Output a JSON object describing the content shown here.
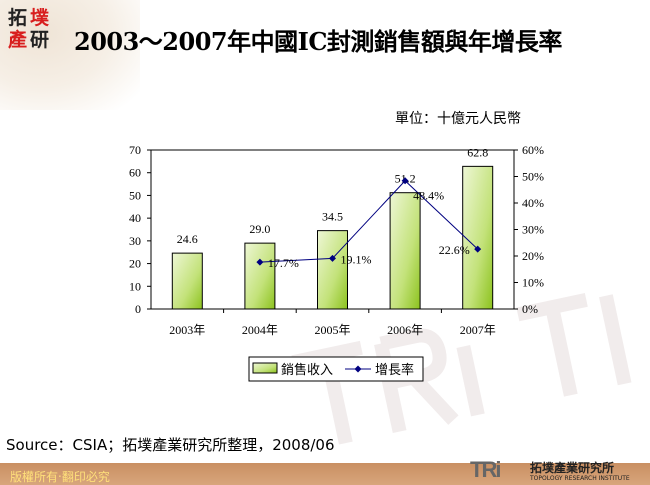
{
  "header": {
    "logo_text": "拓墣產研",
    "title": "2003～2007年中國IC封測銷售額與年增長率",
    "unit": "單位：十億元人民幣"
  },
  "chart_data": {
    "type": "bar+line",
    "categories": [
      "2003年",
      "2004年",
      "2005年",
      "2006年",
      "2007年"
    ],
    "series": [
      {
        "name": "銷售收入",
        "type": "bar",
        "axis": "left",
        "values": [
          24.6,
          29.0,
          34.5,
          51.2,
          62.8
        ],
        "labels": [
          "24.6",
          "29.0",
          "34.5",
          "51.2",
          "62.8"
        ],
        "color": "#9acd32"
      },
      {
        "name": "增長率",
        "type": "line",
        "axis": "right",
        "values": [
          null,
          17.7,
          19.1,
          48.4,
          22.6
        ],
        "labels": [
          "",
          "17.7%",
          "19.1%",
          "48.4%",
          "22.6%"
        ],
        "color": "#000080"
      }
    ],
    "left_axis": {
      "ylim": [
        0,
        70
      ],
      "ticks": [
        "0",
        "10",
        "20",
        "30",
        "40",
        "50",
        "60",
        "70"
      ]
    },
    "right_axis": {
      "ylim": [
        0,
        60
      ],
      "ticks": [
        "0%",
        "10%",
        "20%",
        "30%",
        "40%",
        "50%",
        "60%"
      ]
    },
    "legend": "bottom",
    "grid": false
  },
  "footer": {
    "source": "Source：CSIA；拓墣產業研究所整理，2008/06",
    "copyright": "版權所有‧翻印必究",
    "brand": "TRi",
    "brand_cn": "拓墣產業研究所",
    "brand_en": "TOPOLOGY RESEARCH INSTITUTE"
  }
}
